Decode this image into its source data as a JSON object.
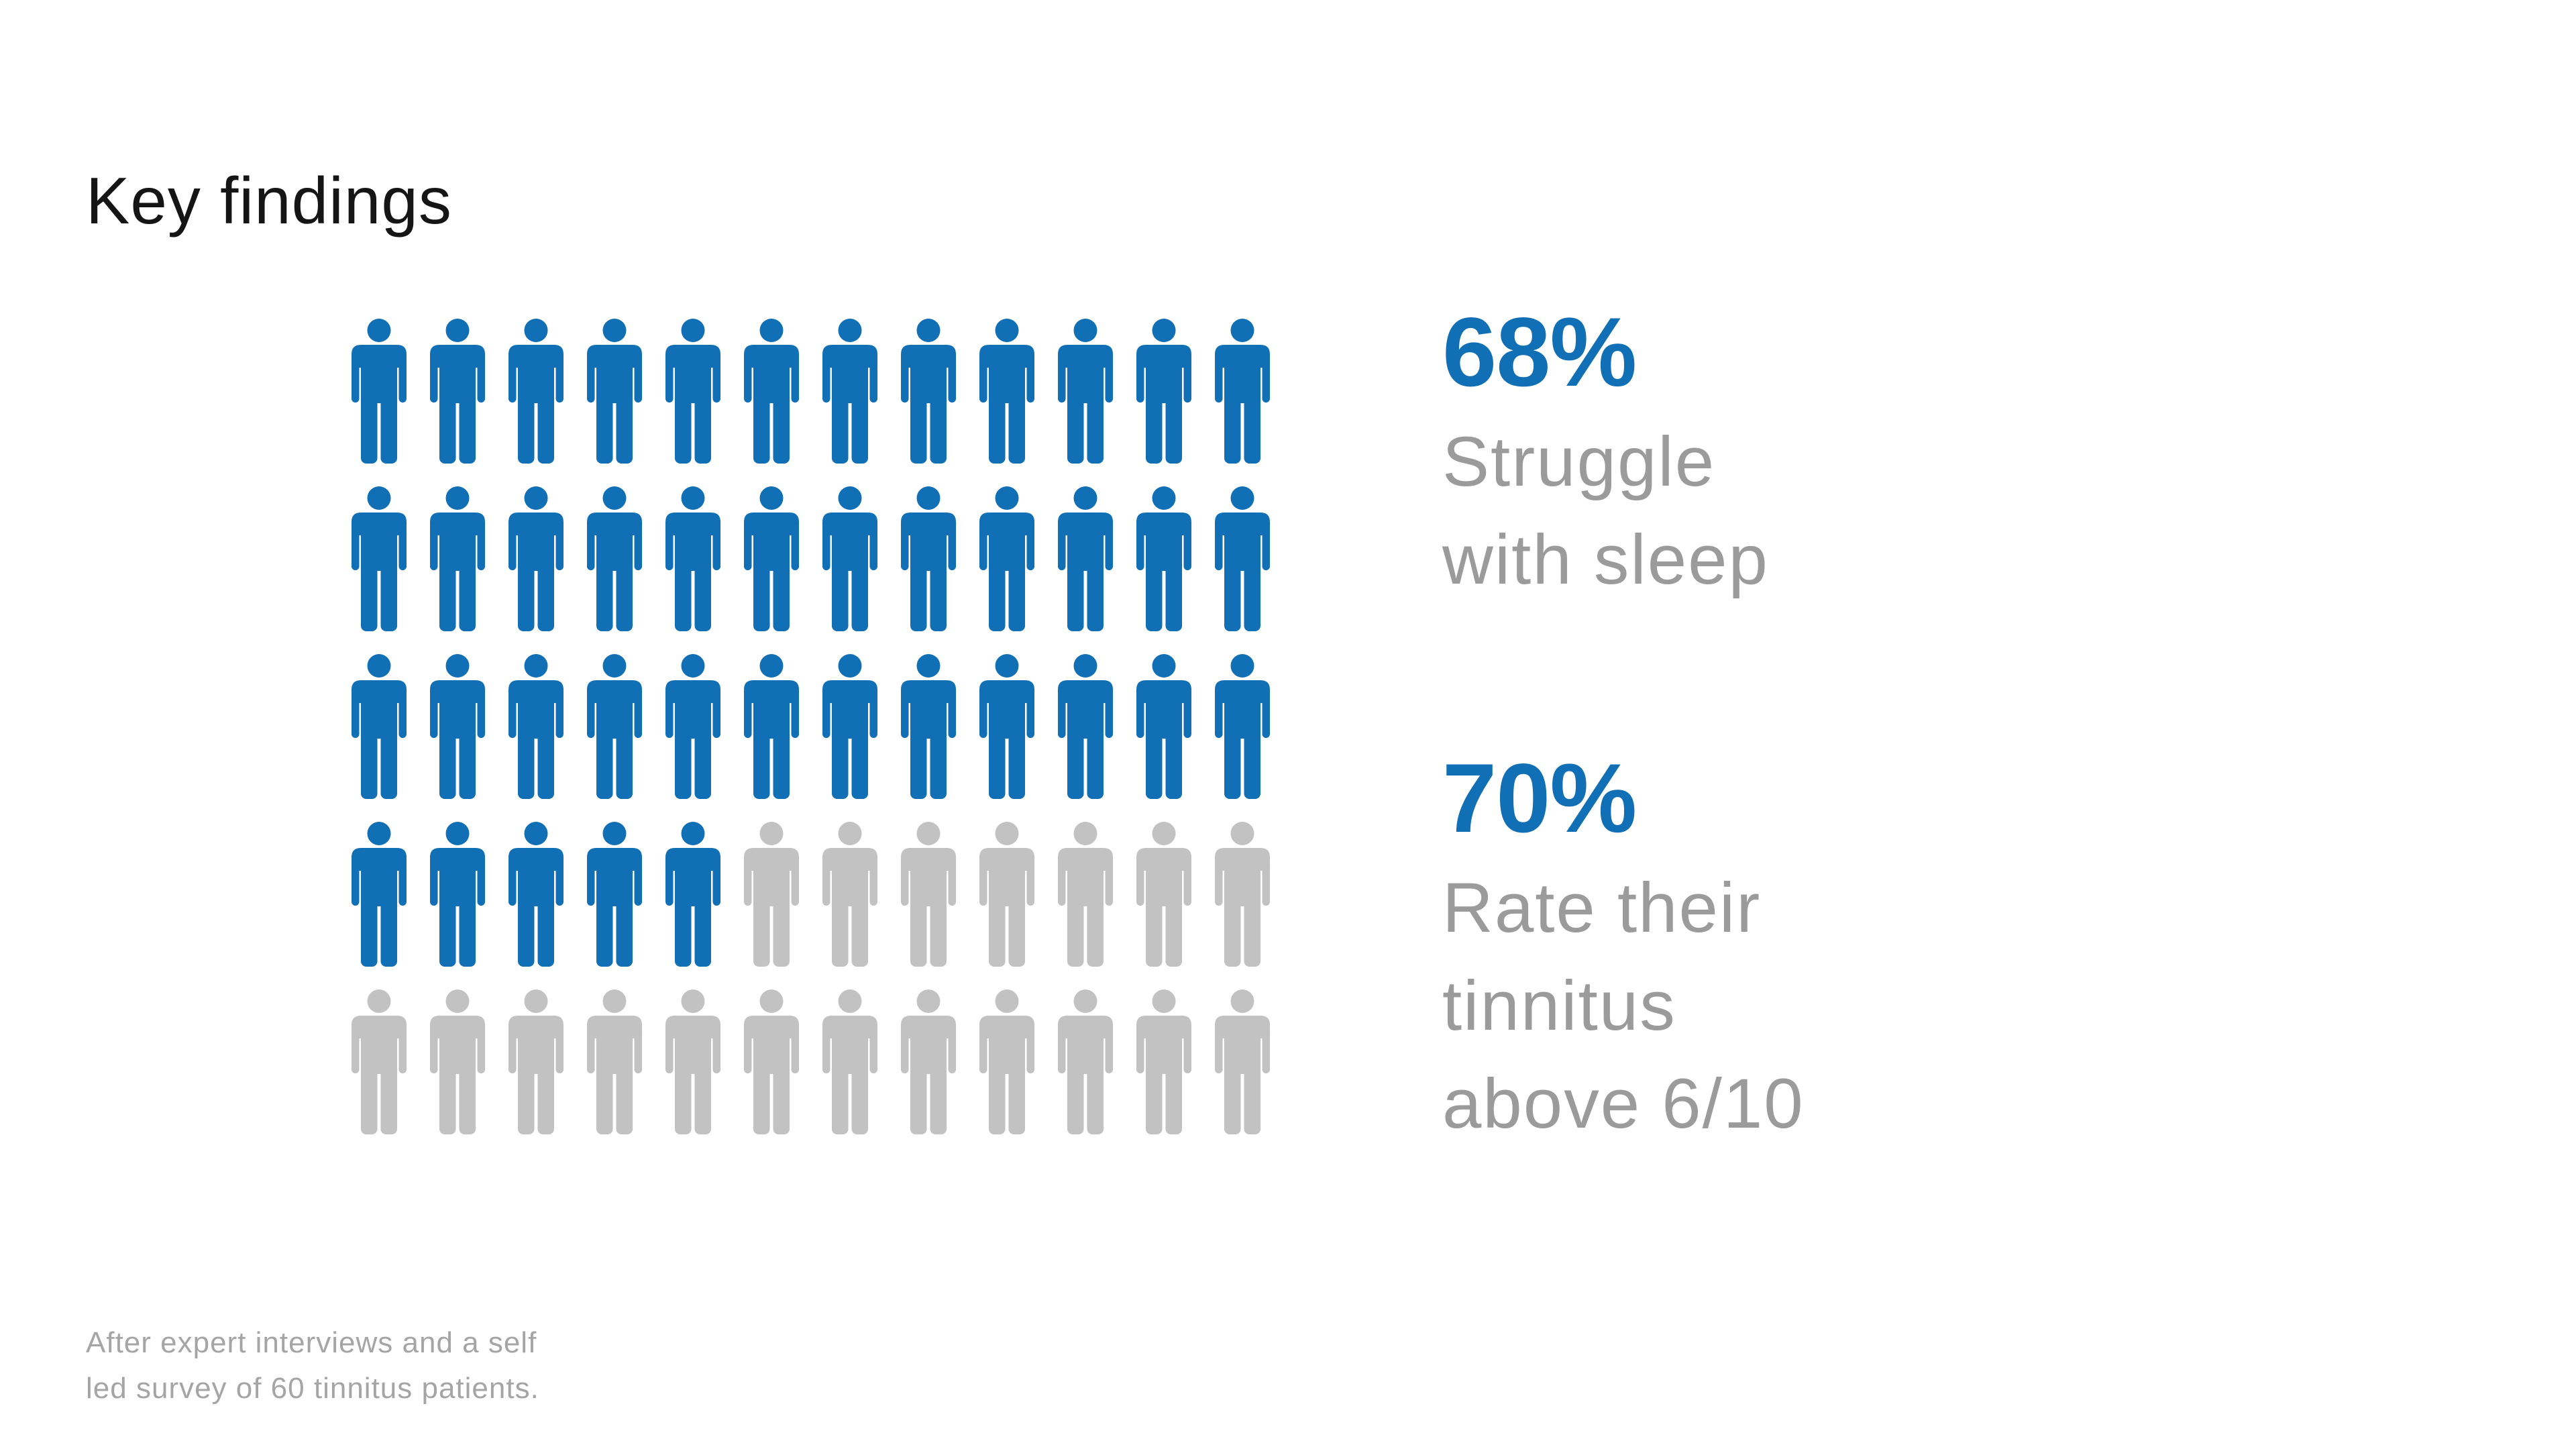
{
  "page": {
    "title": "Key findings",
    "background": "#FFFFFF",
    "footnote_lines": [
      "After expert interviews and a self",
      "led survey of 60 tinnitus patients."
    ]
  },
  "colors": {
    "title_text": "#151515",
    "accent_blue": "#116FB5",
    "filled_icon_blue": "#116FB5",
    "unfilled_icon_gray": "#C2C2C2",
    "stat_label_gray": "#9B9B9B",
    "footnote_gray": "#A5A5A5"
  },
  "chart_data": {
    "type": "pictogram",
    "icon": "person",
    "title": "Key findings",
    "total_icons": 60,
    "columns": 12,
    "rows": 5,
    "filled_icons": 41,
    "filled_color": "#116FB5",
    "unfilled_color": "#C2C2C2",
    "legend_position": "right",
    "grid": "off",
    "stats": [
      {
        "value": "68%",
        "label": "Struggle with sleep",
        "label_lines": [
          "Struggle",
          "with sleep"
        ]
      },
      {
        "value": "70%",
        "label": "Rate their tinnitus above 6/10",
        "label_lines": [
          "Rate their",
          "tinnitus",
          "above 6/10"
        ]
      }
    ],
    "source_note": "After expert interviews and a self led survey of 60 tinnitus patients."
  }
}
